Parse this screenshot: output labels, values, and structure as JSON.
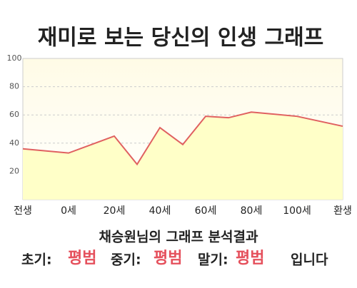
{
  "chart_data": {
    "type": "area",
    "title": "재미로 보는 당신의 인생 그래프",
    "x": [
      -20,
      0,
      20,
      30,
      40,
      50,
      60,
      70,
      80,
      100,
      120
    ],
    "values": [
      36,
      33,
      45,
      25,
      51,
      39,
      59,
      58,
      62,
      59,
      52
    ],
    "color": "#e06060",
    "fill": "#ffffc8",
    "xlim": [
      -20,
      120
    ],
    "xticks": [
      {
        "value": -20,
        "label": "전생"
      },
      {
        "value": 0,
        "label": "0세"
      },
      {
        "value": 20,
        "label": "20세"
      },
      {
        "value": 40,
        "label": "40세"
      },
      {
        "value": 60,
        "label": "60세"
      },
      {
        "value": 80,
        "label": "80세"
      },
      {
        "value": 100,
        "label": "100세"
      },
      {
        "value": 120,
        "label": "환생"
      }
    ],
    "ylim": [
      0,
      100
    ],
    "yticks": [
      20,
      40,
      60,
      80,
      100
    ],
    "grid": true
  },
  "summary": {
    "title": "채승원님의 그래프 분석결과",
    "items": [
      {
        "label": "초기:",
        "result": "평범"
      },
      {
        "label": "중기:",
        "result": "평범"
      },
      {
        "label": "말기:",
        "result": "평범"
      }
    ],
    "ending": "입니다"
  }
}
